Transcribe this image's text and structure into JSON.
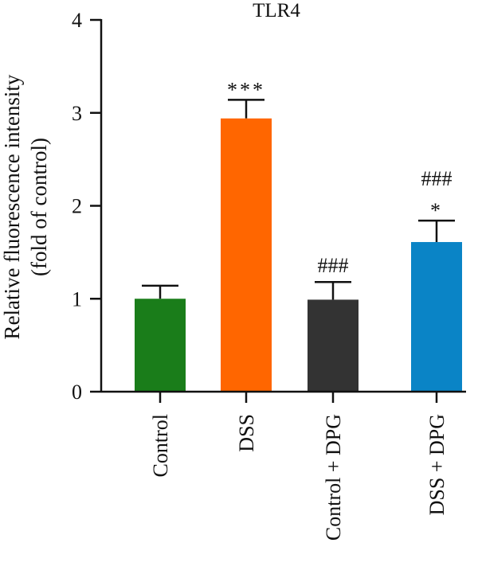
{
  "chart_data": {
    "type": "bar",
    "title": "TLR4",
    "ylabel_line1": "Relative fluorescence intensity",
    "ylabel_line2": "(fold of control)",
    "xlabel": "",
    "ylim": [
      0,
      4
    ],
    "yticks": [
      "0",
      "1",
      "2",
      "3",
      "4"
    ],
    "categories": [
      "Control",
      "DSS",
      "Control + DPG",
      "DSS + DPG"
    ],
    "values": [
      1.0,
      2.94,
      0.99,
      1.61
    ],
    "errors": [
      0.14,
      0.2,
      0.19,
      0.23
    ],
    "colors": [
      "#1a7d1a",
      "#ff6600",
      "#333333",
      "#0a84c6"
    ],
    "annotations": [
      {
        "bar": 1,
        "lines": [
          "***"
        ]
      },
      {
        "bar": 2,
        "lines": [
          "###"
        ]
      },
      {
        "bar": 3,
        "lines": [
          "###",
          "*"
        ]
      }
    ],
    "grid": false,
    "legend": "none"
  }
}
